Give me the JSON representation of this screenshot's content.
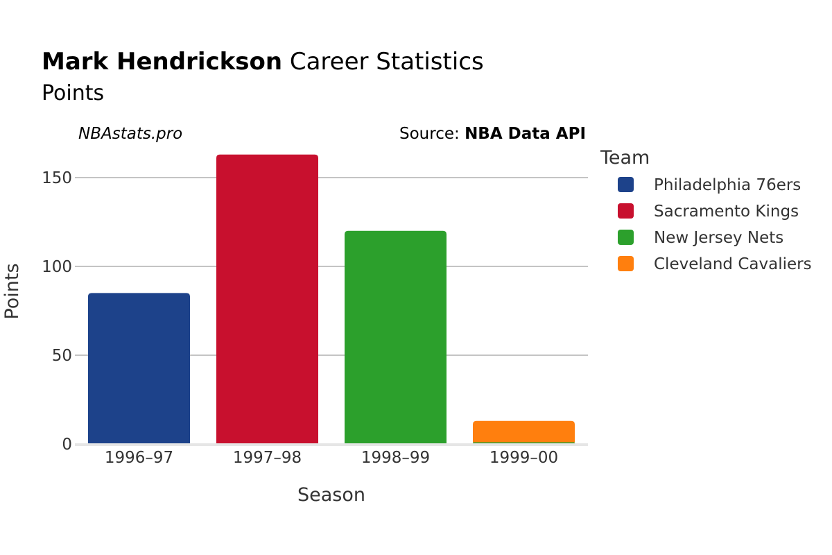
{
  "header": {
    "player_name": "Mark Hendrickson",
    "title_suffix": " Career Statistics",
    "subtitle": "Points",
    "brand": "NBAstats.pro",
    "source_prefix": "Source: ",
    "source_name": "NBA Data API"
  },
  "legend": {
    "title": "Team",
    "items": [
      {
        "name": "Philadelphia 76ers",
        "color": "#1d428a"
      },
      {
        "name": "Sacramento Kings",
        "color": "#c8102e"
      },
      {
        "name": "New Jersey Nets",
        "color": "#2ca02c"
      },
      {
        "name": "Cleveland Cavaliers",
        "color": "#ff7f0e"
      }
    ]
  },
  "chart_data": {
    "type": "bar",
    "stacked": true,
    "xlabel": "Season",
    "ylabel": "Points",
    "categories": [
      "1996–97",
      "1997–98",
      "1998–99",
      "1999–00"
    ],
    "ylim": [
      0,
      165
    ],
    "yticks": [
      0,
      50,
      100,
      150
    ],
    "grid": true,
    "legend_position": "right",
    "segments": [
      {
        "category": "1996–97",
        "team": "Philadelphia 76ers",
        "value": 85,
        "color": "#1d428a"
      },
      {
        "category": "1997–98",
        "team": "Sacramento Kings",
        "value": 163,
        "color": "#c8102e"
      },
      {
        "category": "1998–99",
        "team": "New Jersey Nets",
        "value": 120,
        "color": "#2ca02c"
      },
      {
        "category": "1999–00",
        "team": "New Jersey Nets",
        "value": 1,
        "color": "#2ca02c"
      },
      {
        "category": "1999–00",
        "team": "Cleveland Cavaliers",
        "value": 12,
        "color": "#ff7f0e"
      }
    ]
  }
}
